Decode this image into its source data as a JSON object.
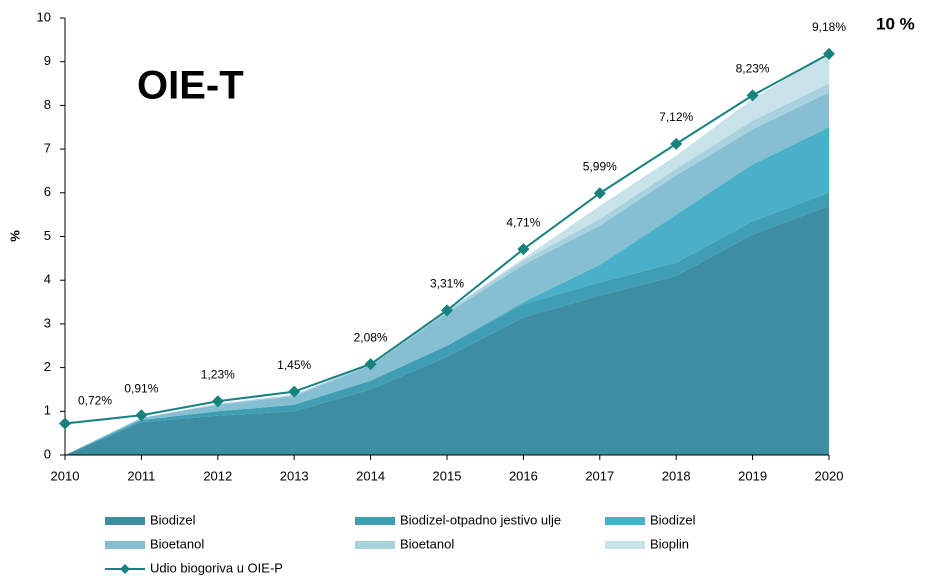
{
  "chart_data": {
    "type": "area",
    "annotations": [
      "OIE-T",
      "10 %"
    ],
    "ylabel": "%",
    "x": [
      2010,
      2011,
      2012,
      2013,
      2014,
      2015,
      2016,
      2017,
      2018,
      2019,
      2020
    ],
    "xlim": [
      2010,
      2020
    ],
    "xticks": [
      2010,
      2011,
      2012,
      2013,
      2014,
      2015,
      2016,
      2017,
      2018,
      2019,
      2020
    ],
    "ylim": [
      0,
      10
    ],
    "yticks": [
      0,
      1,
      2,
      3,
      4,
      5,
      6,
      7,
      8,
      9,
      10
    ],
    "stacked": true,
    "series": [
      {
        "name": "Biodizel",
        "color": "#3d8ea3",
        "values": [
          0,
          0.75,
          0.9,
          1.0,
          1.5,
          2.25,
          3.15,
          3.65,
          4.1,
          5.05,
          5.7
        ]
      },
      {
        "name": "Biodizel-otpadno jestivo ulje",
        "color": "#3f9db4",
        "values": [
          0,
          0.05,
          0.1,
          0.15,
          0.2,
          0.25,
          0.3,
          0.3,
          0.3,
          0.3,
          0.3
        ]
      },
      {
        "name": "Biodizel",
        "color": "#4aafc8",
        "values": [
          0,
          0,
          0,
          0,
          0,
          0,
          0.05,
          0.4,
          1.1,
          1.3,
          1.5
        ]
      },
      {
        "name": "Bioetanol",
        "color": "#86bfd1",
        "values": [
          0,
          0.05,
          0.15,
          0.2,
          0.35,
          0.75,
          0.85,
          0.9,
          0.9,
          0.8,
          0.8
        ]
      },
      {
        "name": "Bioetanol",
        "color": "#a9d2df",
        "values": [
          0,
          0,
          0.02,
          0.03,
          0.03,
          0.05,
          0.1,
          0.15,
          0.15,
          0.2,
          0.2
        ]
      },
      {
        "name": "Bioplin",
        "color": "#c8e2ea",
        "values": [
          0,
          0,
          0,
          0,
          0,
          0,
          0.05,
          0.3,
          0.3,
          0.5,
          0.7
        ]
      },
      {
        "name": "Udio biogoriva u OIE-P",
        "type": "line",
        "color": "#17827f",
        "values": [
          0.72,
          0.91,
          1.23,
          1.45,
          2.08,
          3.31,
          4.71,
          5.99,
          7.12,
          8.23,
          9.18
        ],
        "value_labels": [
          "0,72%",
          "0,91%",
          "1,23%",
          "1,45%",
          "2,08%",
          "3,31%",
          "4,71%",
          "5,99%",
          "7,12%",
          "8,23%",
          "9,18%"
        ]
      }
    ]
  }
}
